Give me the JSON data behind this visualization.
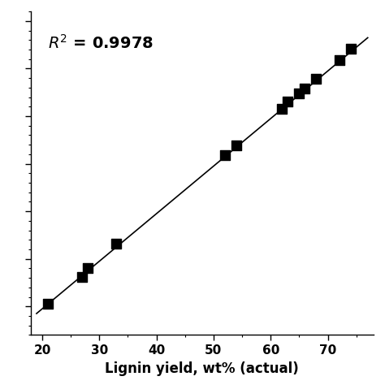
{
  "x_actual": [
    21,
    27,
    28,
    33,
    52,
    54,
    62,
    63,
    65,
    66,
    68,
    72,
    74
  ],
  "y_predicted": [
    20.5,
    26.2,
    28.0,
    33.2,
    51.8,
    53.8,
    61.5,
    63.0,
    64.8,
    65.8,
    67.8,
    71.8,
    74.2
  ],
  "fit_x": [
    19,
    77
  ],
  "fit_y": [
    18.5,
    76.5
  ],
  "xlabel": "Lignin yield, wt% (actual)",
  "r2_text": "$R^2$ = 0.9978",
  "xlim": [
    18,
    78
  ],
  "ylim": [
    14,
    82
  ],
  "xticks": [
    20,
    30,
    40,
    50,
    60,
    70
  ],
  "marker_color": "black",
  "marker_size": 8,
  "line_color": "black",
  "line_width": 1.2,
  "background_color": "white"
}
